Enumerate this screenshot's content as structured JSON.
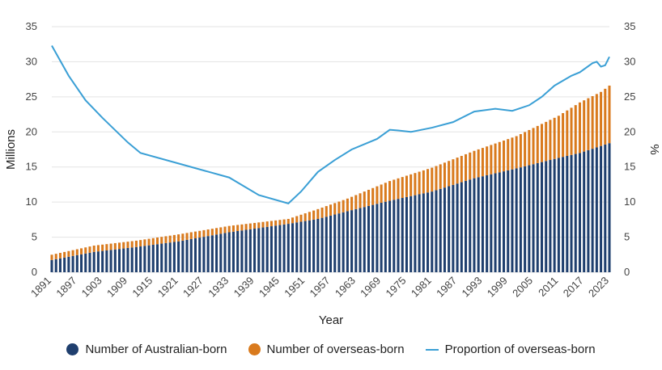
{
  "chart_data": {
    "type": "bar",
    "title": "",
    "xlabel": "Year",
    "ylabel_left": "Millions",
    "ylabel_right": "%",
    "ylim_left": [
      0,
      35
    ],
    "ylim_right": [
      0,
      35
    ],
    "y_ticks": [
      0,
      5,
      10,
      15,
      20,
      25,
      30,
      35
    ],
    "x_range": [
      1891,
      2023
    ],
    "x_tick_labels": [
      "1891",
      "1897",
      "1903",
      "1909",
      "1915",
      "1921",
      "1927",
      "1933",
      "1939",
      "1945",
      "1951",
      "1957",
      "1963",
      "1969",
      "1975",
      "1981",
      "1987",
      "1993",
      "1999",
      "2005",
      "2011",
      "2017",
      "2023"
    ],
    "legend_position": "bottom",
    "stacked": true,
    "colors": {
      "australian": "#1f3f6e",
      "overseas": "#d97a1d",
      "proportion": "#3a9fd5",
      "grid": "#e3e3e3"
    },
    "series_anchors": {
      "australian_born": [
        [
          1891,
          1.75
        ],
        [
          1901,
          2.9
        ],
        [
          1911,
          3.6
        ],
        [
          1921,
          4.4
        ],
        [
          1933,
          5.7
        ],
        [
          1947,
          6.9
        ],
        [
          1954,
          7.6
        ],
        [
          1961,
          8.7
        ],
        [
          1971,
          10.2
        ],
        [
          1981,
          11.5
        ],
        [
          1991,
          13.4
        ],
        [
          2001,
          14.8
        ],
        [
          2011,
          16.3
        ],
        [
          2016,
          17.0
        ],
        [
          2021,
          18.0
        ],
        [
          2023,
          18.4
        ]
      ],
      "total_population": [
        [
          1891,
          2.5
        ],
        [
          1901,
          3.8
        ],
        [
          1911,
          4.5
        ],
        [
          1921,
          5.4
        ],
        [
          1933,
          6.6
        ],
        [
          1947,
          7.6
        ],
        [
          1954,
          9.0
        ],
        [
          1961,
          10.5
        ],
        [
          1971,
          13.0
        ],
        [
          1981,
          14.9
        ],
        [
          1991,
          17.3
        ],
        [
          2001,
          19.4
        ],
        [
          2011,
          22.3
        ],
        [
          2016,
          24.2
        ],
        [
          2021,
          25.7
        ],
        [
          2023,
          26.6
        ]
      ]
    },
    "series": [
      {
        "name": "Number of Australian-born",
        "kind": "bar"
      },
      {
        "name": "Number of overseas-born",
        "kind": "bar"
      },
      {
        "name": "Proportion of overseas-born",
        "kind": "line",
        "axis": "right",
        "points": [
          [
            1891,
            32.3
          ],
          [
            1895,
            28.0
          ],
          [
            1899,
            24.5
          ],
          [
            1903,
            22.0
          ],
          [
            1909,
            18.5
          ],
          [
            1912,
            17.0
          ],
          [
            1921,
            15.5
          ],
          [
            1933,
            13.5
          ],
          [
            1940,
            11.0
          ],
          [
            1947,
            9.8
          ],
          [
            1950,
            11.5
          ],
          [
            1954,
            14.3
          ],
          [
            1958,
            16.0
          ],
          [
            1962,
            17.5
          ],
          [
            1968,
            19.0
          ],
          [
            1971,
            20.3
          ],
          [
            1973,
            20.2
          ],
          [
            1976,
            20.0
          ],
          [
            1981,
            20.6
          ],
          [
            1986,
            21.4
          ],
          [
            1991,
            22.9
          ],
          [
            1996,
            23.3
          ],
          [
            2000,
            23.0
          ],
          [
            2004,
            23.8
          ],
          [
            2007,
            25.0
          ],
          [
            2010,
            26.6
          ],
          [
            2014,
            28.0
          ],
          [
            2016,
            28.5
          ],
          [
            2019,
            29.8
          ],
          [
            2020,
            30.0
          ],
          [
            2021,
            29.3
          ],
          [
            2022,
            29.5
          ],
          [
            2023,
            30.7
          ]
        ]
      }
    ]
  }
}
